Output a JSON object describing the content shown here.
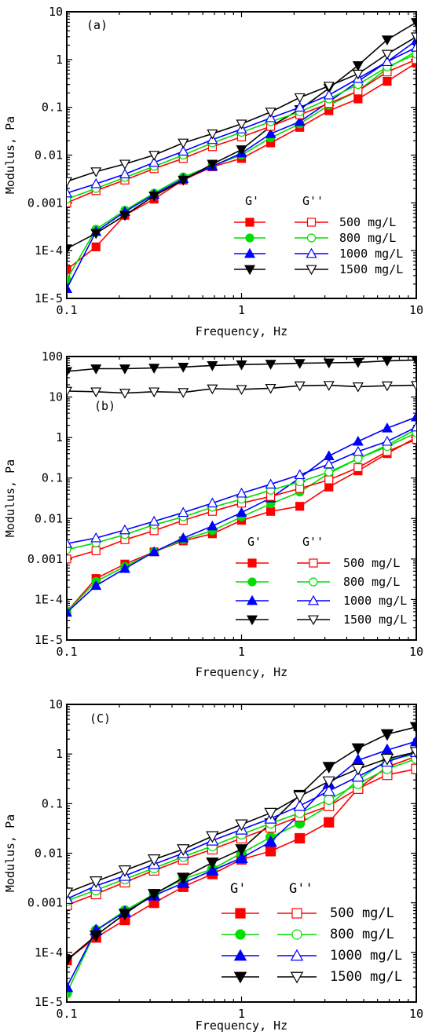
{
  "chart_data": [
    {
      "type": "line",
      "panel_label": "(a)",
      "xlabel": "Frequency, Hz",
      "ylabel": "Modulus, Pa",
      "xscale": "log",
      "yscale": "log",
      "xlim": [
        0.1,
        10
      ],
      "ylim": [
        1e-05,
        10
      ],
      "xticks": [
        {
          "v": 0.1,
          "label": "0.1"
        },
        {
          "v": 1,
          "label": "1"
        },
        {
          "v": 10,
          "label": "10"
        }
      ],
      "yticks": [
        {
          "v": 1e-05,
          "label": "1E-5"
        },
        {
          "v": 0.0001,
          "label": "1E-4"
        },
        {
          "v": 0.001,
          "label": "0.001"
        },
        {
          "v": 0.01,
          "label": "0.01"
        },
        {
          "v": 0.1,
          "label": "0.1"
        },
        {
          "v": 1,
          "label": "1"
        },
        {
          "v": 10,
          "label": "10"
        }
      ],
      "legend": {
        "position": "lower-right",
        "header_gp": "G'",
        "header_gpp": "G''",
        "labels": [
          "500 mg/L",
          "800 mg/L",
          "1000 mg/L",
          "1500 mg/L"
        ]
      },
      "x": [
        0.1,
        0.147,
        0.215,
        0.316,
        0.464,
        0.681,
        1.0,
        1.468,
        2.154,
        3.162,
        4.642,
        6.813,
        10.0
      ],
      "series": [
        {
          "name": "500 mg/L",
          "modulus": "G'",
          "color": "#ff0000",
          "marker": "square",
          "values": [
            4e-05,
            0.00012,
            0.00055,
            0.0012,
            0.003,
            0.0057,
            0.0085,
            0.018,
            0.038,
            0.085,
            0.15,
            0.35,
            0.85
          ]
        },
        {
          "name": "800 mg/L",
          "modulus": "G'",
          "color": "#00dd00",
          "marker": "circle",
          "values": [
            2.5e-05,
            0.00028,
            0.0007,
            0.0016,
            0.0035,
            0.006,
            0.01,
            0.023,
            0.045,
            0.11,
            0.22,
            0.65,
            1.5
          ]
        },
        {
          "name": "1000 mg/L",
          "modulus": "G'",
          "color": "#0000ff",
          "marker": "triangle-up",
          "values": [
            1.6e-05,
            0.00025,
            0.00065,
            0.0015,
            0.0032,
            0.0058,
            0.011,
            0.028,
            0.05,
            0.13,
            0.35,
            0.9,
            2.5
          ]
        },
        {
          "name": "1500 mg/L",
          "modulus": "G'",
          "color": "#000000",
          "marker": "triangle-down",
          "values": [
            0.00011,
            0.00023,
            0.00055,
            0.0014,
            0.003,
            0.0065,
            0.013,
            0.04,
            0.09,
            0.25,
            0.75,
            2.6,
            6.0
          ]
        },
        {
          "name": "500 mg/L",
          "modulus": "G''",
          "color": "#ff0000",
          "marker": "square-open",
          "values": [
            0.001,
            0.0018,
            0.003,
            0.0052,
            0.0085,
            0.015,
            0.024,
            0.04,
            0.07,
            0.12,
            0.22,
            0.55,
            1.0
          ]
        },
        {
          "name": "800 mg/L",
          "modulus": "G''",
          "color": "#00dd00",
          "marker": "circle-open",
          "values": [
            0.0012,
            0.002,
            0.0034,
            0.0058,
            0.01,
            0.018,
            0.03,
            0.05,
            0.08,
            0.15,
            0.3,
            0.7,
            1.3
          ]
        },
        {
          "name": "1000 mg/L",
          "modulus": "G''",
          "color": "#0000ff",
          "marker": "triangle-up-open",
          "values": [
            0.0016,
            0.0025,
            0.004,
            0.007,
            0.012,
            0.021,
            0.035,
            0.06,
            0.1,
            0.18,
            0.4,
            0.9,
            1.8
          ]
        },
        {
          "name": "1500 mg/L",
          "modulus": "G''",
          "color": "#000000",
          "marker": "triangle-down-open",
          "values": [
            0.0028,
            0.0045,
            0.0065,
            0.01,
            0.018,
            0.028,
            0.045,
            0.08,
            0.16,
            0.28,
            0.5,
            1.3,
            3.0
          ]
        }
      ]
    },
    {
      "type": "line",
      "panel_label": "(b)",
      "xlabel": "Frequency, Hz",
      "ylabel": "Modulus, Pa",
      "xscale": "log",
      "yscale": "log",
      "xlim": [
        0.1,
        10
      ],
      "ylim": [
        1e-05,
        100
      ],
      "xticks": [
        {
          "v": 0.1,
          "label": "0.1"
        },
        {
          "v": 1,
          "label": "1"
        },
        {
          "v": 10,
          "label": "10"
        }
      ],
      "yticks": [
        {
          "v": 1e-05,
          "label": "1E-5"
        },
        {
          "v": 0.0001,
          "label": "1E-4"
        },
        {
          "v": 0.001,
          "label": "0.001"
        },
        {
          "v": 0.01,
          "label": "0.01"
        },
        {
          "v": 0.1,
          "label": "0.1"
        },
        {
          "v": 1,
          "label": "1"
        },
        {
          "v": 10,
          "label": "10"
        },
        {
          "v": 100,
          "label": "100"
        }
      ],
      "legend": {
        "position": "lower-right",
        "header_gp": "G'",
        "header_gpp": "G''",
        "labels": [
          "500 mg/L",
          "800 mg/L",
          "1000 mg/L",
          "1500 mg/L"
        ]
      },
      "x": [
        0.1,
        0.147,
        0.215,
        0.316,
        0.464,
        0.681,
        1.0,
        1.468,
        2.154,
        3.162,
        4.642,
        6.813,
        10.0
      ],
      "series": [
        {
          "name": "500 mg/L",
          "modulus": "G'",
          "color": "#ff0000",
          "marker": "square",
          "values": [
            5e-05,
            0.00033,
            0.00075,
            0.0015,
            0.0028,
            0.0042,
            0.009,
            0.015,
            0.02,
            0.06,
            0.15,
            0.4,
            1.0
          ]
        },
        {
          "name": "800 mg/L",
          "modulus": "G'",
          "color": "#00dd00",
          "marker": "circle",
          "values": [
            5e-05,
            0.00028,
            0.00065,
            0.0015,
            0.003,
            0.005,
            0.011,
            0.023,
            0.045,
            0.13,
            0.3,
            0.65,
            1.6
          ]
        },
        {
          "name": "1000 mg/L",
          "modulus": "G'",
          "color": "#0000ff",
          "marker": "triangle-up",
          "values": [
            4.8e-05,
            0.00022,
            0.00058,
            0.0015,
            0.0033,
            0.0065,
            0.014,
            0.032,
            0.1,
            0.35,
            0.8,
            1.7,
            3.2
          ]
        },
        {
          "name": "1500 mg/L",
          "modulus": "G'",
          "color": "#000000",
          "marker": "triangle-down",
          "values": [
            43,
            50,
            50,
            52,
            55,
            60,
            63,
            65,
            68,
            70,
            72,
            78,
            82
          ]
        },
        {
          "name": "500 mg/L",
          "modulus": "G''",
          "color": "#ff0000",
          "marker": "square-open",
          "values": [
            0.001,
            0.0016,
            0.003,
            0.005,
            0.009,
            0.015,
            0.024,
            0.035,
            0.055,
            0.09,
            0.18,
            0.45,
            0.9
          ]
        },
        {
          "name": "800 mg/L",
          "modulus": "G''",
          "color": "#00dd00",
          "marker": "circle-open",
          "values": [
            0.0017,
            0.0025,
            0.004,
            0.007,
            0.011,
            0.019,
            0.03,
            0.05,
            0.08,
            0.14,
            0.3,
            0.6,
            1.3
          ]
        },
        {
          "name": "1000 mg/L",
          "modulus": "G''",
          "color": "#0000ff",
          "marker": "triangle-up-open",
          "values": [
            0.0024,
            0.0033,
            0.0052,
            0.0085,
            0.014,
            0.024,
            0.042,
            0.07,
            0.12,
            0.22,
            0.45,
            0.8,
            1.8
          ]
        },
        {
          "name": "1500 mg/L",
          "modulus": "G''",
          "color": "#000000",
          "marker": "triangle-down-open",
          "values": [
            14,
            13.5,
            12.5,
            13.5,
            13,
            16,
            15.5,
            16.5,
            19,
            19.5,
            18,
            19,
            19.5
          ]
        }
      ]
    },
    {
      "type": "line",
      "panel_label": "(C)",
      "xlabel": "Frequency, Hz",
      "ylabel": "Modulus, Pa",
      "xscale": "log",
      "yscale": "log",
      "xlim": [
        0.1,
        10
      ],
      "ylim": [
        1e-05,
        10
      ],
      "xticks": [
        {
          "v": 0.1,
          "label": "0.1"
        },
        {
          "v": 1,
          "label": "1"
        },
        {
          "v": 10,
          "label": "10"
        }
      ],
      "yticks": [
        {
          "v": 1e-05,
          "label": "1E-5"
        },
        {
          "v": 0.0001,
          "label": "1E-4"
        },
        {
          "v": 0.001,
          "label": "0.001"
        },
        {
          "v": 0.01,
          "label": "0.01"
        },
        {
          "v": 0.1,
          "label": "0.1"
        },
        {
          "v": 1,
          "label": "1"
        },
        {
          "v": 10,
          "label": "10"
        }
      ],
      "legend": {
        "position": "lower-right",
        "header_gp": "G'",
        "header_gpp": "G''",
        "labels": [
          "500 mg/L",
          "800 mg/L",
          "1000 mg/L",
          "1500 mg/L"
        ]
      },
      "x": [
        0.1,
        0.147,
        0.215,
        0.316,
        0.464,
        0.681,
        1.0,
        1.468,
        2.154,
        3.162,
        4.642,
        6.813,
        10.0
      ],
      "series": [
        {
          "name": "500 mg/L",
          "modulus": "G'",
          "color": "#ff0000",
          "marker": "square",
          "values": [
            7e-05,
            0.0002,
            0.00045,
            0.001,
            0.0021,
            0.0038,
            0.0075,
            0.011,
            0.02,
            0.042,
            0.2,
            0.55,
            0.9
          ]
        },
        {
          "name": "800 mg/L",
          "modulus": "G'",
          "color": "#00dd00",
          "marker": "circle",
          "values": [
            1.5e-05,
            0.00028,
            0.0007,
            0.0015,
            0.003,
            0.0048,
            0.01,
            0.021,
            0.04,
            0.09,
            0.3,
            0.75,
            1.0
          ]
        },
        {
          "name": "1000 mg/L",
          "modulus": "G'",
          "color": "#0000ff",
          "marker": "triangle-up",
          "values": [
            2e-05,
            0.00028,
            0.00065,
            0.0014,
            0.0025,
            0.0045,
            0.008,
            0.017,
            0.06,
            0.25,
            0.75,
            1.2,
            1.8
          ]
        },
        {
          "name": "1500 mg/L",
          "modulus": "G'",
          "color": "#000000",
          "marker": "triangle-down",
          "values": [
            7e-05,
            0.00022,
            0.0006,
            0.0015,
            0.0032,
            0.0065,
            0.012,
            0.04,
            0.15,
            0.55,
            1.3,
            2.5,
            3.5
          ]
        },
        {
          "name": "500 mg/L",
          "modulus": "G''",
          "color": "#ff0000",
          "marker": "square-open",
          "values": [
            0.0009,
            0.0015,
            0.0026,
            0.0045,
            0.0075,
            0.012,
            0.02,
            0.033,
            0.055,
            0.09,
            0.2,
            0.38,
            0.5
          ]
        },
        {
          "name": "800 mg/L",
          "modulus": "G''",
          "color": "#00dd00",
          "marker": "circle-open",
          "values": [
            0.0011,
            0.0018,
            0.003,
            0.005,
            0.0085,
            0.014,
            0.024,
            0.04,
            0.065,
            0.12,
            0.25,
            0.5,
            0.8
          ]
        },
        {
          "name": "1000 mg/L",
          "modulus": "G''",
          "color": "#0000ff",
          "marker": "triangle-up-open",
          "values": [
            0.0012,
            0.0022,
            0.0035,
            0.006,
            0.01,
            0.018,
            0.03,
            0.05,
            0.09,
            0.18,
            0.35,
            0.7,
            1.1
          ]
        },
        {
          "name": "1500 mg/L",
          "modulus": "G''",
          "color": "#000000",
          "marker": "triangle-down-open",
          "values": [
            0.0016,
            0.0027,
            0.0045,
            0.0075,
            0.012,
            0.022,
            0.038,
            0.065,
            0.14,
            0.28,
            0.5,
            0.8,
            1.1
          ]
        }
      ]
    }
  ]
}
